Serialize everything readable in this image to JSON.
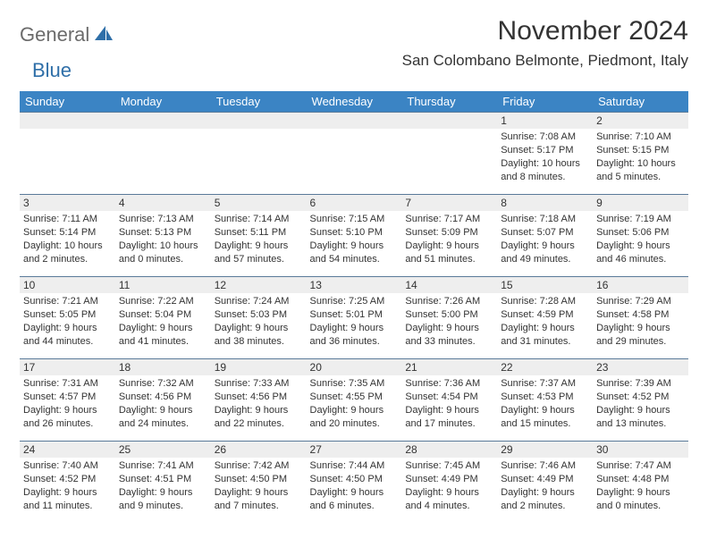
{
  "brand": {
    "text1": "General",
    "text2": "Blue"
  },
  "title": "November 2024",
  "location": "San Colombano Belmonte, Piedmont, Italy",
  "colors": {
    "header_bg": "#3b84c4",
    "header_text": "#ffffff",
    "border": "#5a7a99",
    "daynum_bg": "#eeeeee",
    "text": "#333333",
    "brand_gray": "#6b6b6b",
    "brand_blue": "#2f6fa8",
    "page_bg": "#ffffff"
  },
  "typography": {
    "title_fontsize": 30,
    "location_fontsize": 17,
    "weekday_fontsize": 13,
    "daynum_fontsize": 12,
    "body_fontsize": 11
  },
  "weekdays": [
    "Sunday",
    "Monday",
    "Tuesday",
    "Wednesday",
    "Thursday",
    "Friday",
    "Saturday"
  ],
  "grid": [
    [
      null,
      null,
      null,
      null,
      null,
      {
        "n": "1",
        "sr": "Sunrise: 7:08 AM",
        "ss": "Sunset: 5:17 PM",
        "dl": "Daylight: 10 hours and 8 minutes."
      },
      {
        "n": "2",
        "sr": "Sunrise: 7:10 AM",
        "ss": "Sunset: 5:15 PM",
        "dl": "Daylight: 10 hours and 5 minutes."
      }
    ],
    [
      {
        "n": "3",
        "sr": "Sunrise: 7:11 AM",
        "ss": "Sunset: 5:14 PM",
        "dl": "Daylight: 10 hours and 2 minutes."
      },
      {
        "n": "4",
        "sr": "Sunrise: 7:13 AM",
        "ss": "Sunset: 5:13 PM",
        "dl": "Daylight: 10 hours and 0 minutes."
      },
      {
        "n": "5",
        "sr": "Sunrise: 7:14 AM",
        "ss": "Sunset: 5:11 PM",
        "dl": "Daylight: 9 hours and 57 minutes."
      },
      {
        "n": "6",
        "sr": "Sunrise: 7:15 AM",
        "ss": "Sunset: 5:10 PM",
        "dl": "Daylight: 9 hours and 54 minutes."
      },
      {
        "n": "7",
        "sr": "Sunrise: 7:17 AM",
        "ss": "Sunset: 5:09 PM",
        "dl": "Daylight: 9 hours and 51 minutes."
      },
      {
        "n": "8",
        "sr": "Sunrise: 7:18 AM",
        "ss": "Sunset: 5:07 PM",
        "dl": "Daylight: 9 hours and 49 minutes."
      },
      {
        "n": "9",
        "sr": "Sunrise: 7:19 AM",
        "ss": "Sunset: 5:06 PM",
        "dl": "Daylight: 9 hours and 46 minutes."
      }
    ],
    [
      {
        "n": "10",
        "sr": "Sunrise: 7:21 AM",
        "ss": "Sunset: 5:05 PM",
        "dl": "Daylight: 9 hours and 44 minutes."
      },
      {
        "n": "11",
        "sr": "Sunrise: 7:22 AM",
        "ss": "Sunset: 5:04 PM",
        "dl": "Daylight: 9 hours and 41 minutes."
      },
      {
        "n": "12",
        "sr": "Sunrise: 7:24 AM",
        "ss": "Sunset: 5:03 PM",
        "dl": "Daylight: 9 hours and 38 minutes."
      },
      {
        "n": "13",
        "sr": "Sunrise: 7:25 AM",
        "ss": "Sunset: 5:01 PM",
        "dl": "Daylight: 9 hours and 36 minutes."
      },
      {
        "n": "14",
        "sr": "Sunrise: 7:26 AM",
        "ss": "Sunset: 5:00 PM",
        "dl": "Daylight: 9 hours and 33 minutes."
      },
      {
        "n": "15",
        "sr": "Sunrise: 7:28 AM",
        "ss": "Sunset: 4:59 PM",
        "dl": "Daylight: 9 hours and 31 minutes."
      },
      {
        "n": "16",
        "sr": "Sunrise: 7:29 AM",
        "ss": "Sunset: 4:58 PM",
        "dl": "Daylight: 9 hours and 29 minutes."
      }
    ],
    [
      {
        "n": "17",
        "sr": "Sunrise: 7:31 AM",
        "ss": "Sunset: 4:57 PM",
        "dl": "Daylight: 9 hours and 26 minutes."
      },
      {
        "n": "18",
        "sr": "Sunrise: 7:32 AM",
        "ss": "Sunset: 4:56 PM",
        "dl": "Daylight: 9 hours and 24 minutes."
      },
      {
        "n": "19",
        "sr": "Sunrise: 7:33 AM",
        "ss": "Sunset: 4:56 PM",
        "dl": "Daylight: 9 hours and 22 minutes."
      },
      {
        "n": "20",
        "sr": "Sunrise: 7:35 AM",
        "ss": "Sunset: 4:55 PM",
        "dl": "Daylight: 9 hours and 20 minutes."
      },
      {
        "n": "21",
        "sr": "Sunrise: 7:36 AM",
        "ss": "Sunset: 4:54 PM",
        "dl": "Daylight: 9 hours and 17 minutes."
      },
      {
        "n": "22",
        "sr": "Sunrise: 7:37 AM",
        "ss": "Sunset: 4:53 PM",
        "dl": "Daylight: 9 hours and 15 minutes."
      },
      {
        "n": "23",
        "sr": "Sunrise: 7:39 AM",
        "ss": "Sunset: 4:52 PM",
        "dl": "Daylight: 9 hours and 13 minutes."
      }
    ],
    [
      {
        "n": "24",
        "sr": "Sunrise: 7:40 AM",
        "ss": "Sunset: 4:52 PM",
        "dl": "Daylight: 9 hours and 11 minutes."
      },
      {
        "n": "25",
        "sr": "Sunrise: 7:41 AM",
        "ss": "Sunset: 4:51 PM",
        "dl": "Daylight: 9 hours and 9 minutes."
      },
      {
        "n": "26",
        "sr": "Sunrise: 7:42 AM",
        "ss": "Sunset: 4:50 PM",
        "dl": "Daylight: 9 hours and 7 minutes."
      },
      {
        "n": "27",
        "sr": "Sunrise: 7:44 AM",
        "ss": "Sunset: 4:50 PM",
        "dl": "Daylight: 9 hours and 6 minutes."
      },
      {
        "n": "28",
        "sr": "Sunrise: 7:45 AM",
        "ss": "Sunset: 4:49 PM",
        "dl": "Daylight: 9 hours and 4 minutes."
      },
      {
        "n": "29",
        "sr": "Sunrise: 7:46 AM",
        "ss": "Sunset: 4:49 PM",
        "dl": "Daylight: 9 hours and 2 minutes."
      },
      {
        "n": "30",
        "sr": "Sunrise: 7:47 AM",
        "ss": "Sunset: 4:48 PM",
        "dl": "Daylight: 9 hours and 0 minutes."
      }
    ]
  ]
}
